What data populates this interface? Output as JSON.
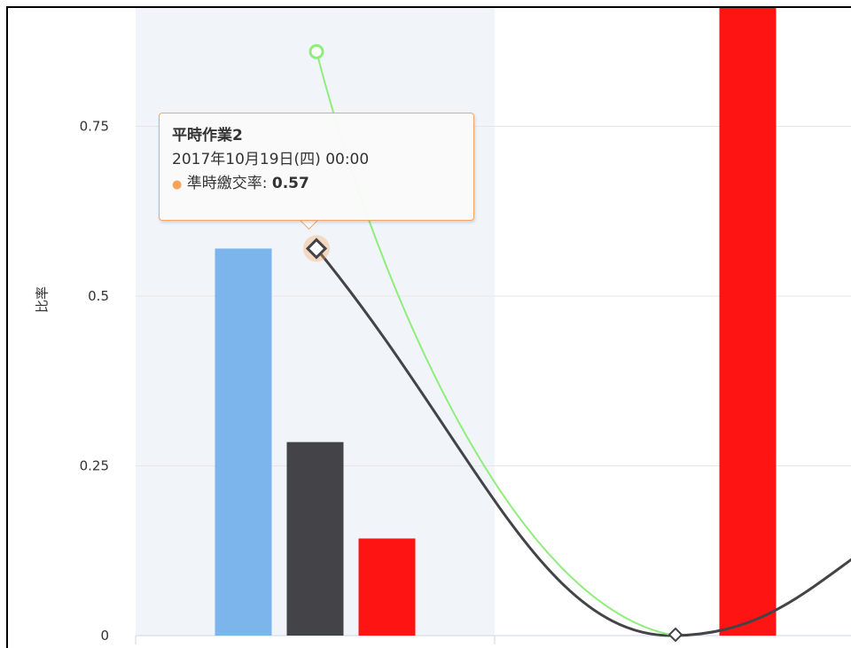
{
  "chart_data": {
    "type": "bar",
    "ylabel": "比率",
    "ylim": [
      0,
      0.9
    ],
    "yticks": [
      "0",
      "0.25",
      "0.5",
      "0.75"
    ],
    "ytick_values": [
      0,
      0.25,
      0.5,
      0.75
    ],
    "categories": [
      "平時作業2",
      ""
    ],
    "highlighted_category": "平時作業2",
    "bar_series": [
      {
        "color": "#7cb5ec",
        "values": [
          0.57,
          null
        ]
      },
      {
        "color": "#434348",
        "values": [
          0.285,
          null
        ]
      },
      {
        "color": "#ff1414",
        "values": [
          0.143,
          0.93
        ]
      }
    ],
    "line_series": [
      {
        "name": "準時繳交率",
        "color": "#434348",
        "marker": "diamond",
        "values": [
          0.57,
          0.0
        ]
      },
      {
        "color": "#90ed7d",
        "marker": "circle",
        "values": [
          0.86,
          0.0
        ]
      }
    ],
    "grid": true,
    "tooltip": {
      "title": "平時作業2",
      "date": "2017年10月19日(四) 00:00",
      "series_label": "準時繳交率",
      "separator": ":",
      "value": "0.57",
      "dot": "●"
    }
  }
}
